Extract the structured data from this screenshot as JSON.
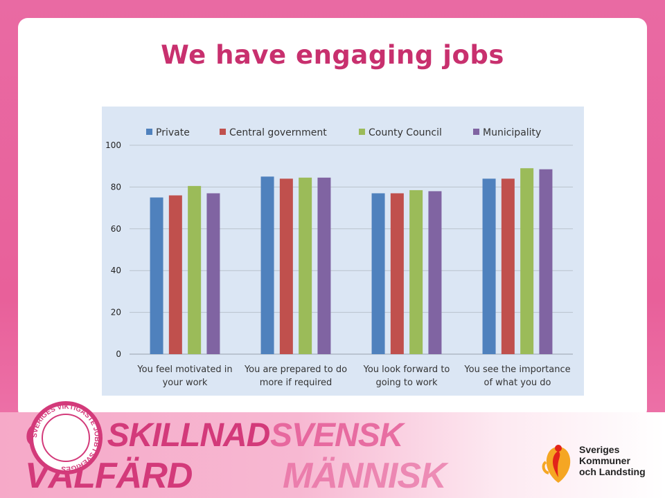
{
  "slide": {
    "title": "We have engaging jobs"
  },
  "footer": {
    "line1a": "GÖR SKILLNAD",
    "line1b": "SVENSK",
    "line2a": "VÄLFÄRD",
    "line2b": "MÄNNISK",
    "stamp_text": "SVERIGES VIKTIGASTE JOBB I SVERIGES",
    "logo_line1": "Sveriges",
    "logo_line2": "Kommuner",
    "logo_line3": "och Landsting"
  },
  "colors": {
    "title": "#c8306e",
    "private": "#4f81bd",
    "central_government": "#c0504d",
    "county_council": "#9bbb59",
    "municipality": "#8064a2"
  },
  "chart_data": {
    "type": "bar",
    "categories": [
      [
        "You feel motivated in",
        "your work"
      ],
      [
        "You are prepared to do",
        "more if required"
      ],
      [
        "You look forward to",
        "going to work"
      ],
      [
        "You see the importance",
        "of what you do"
      ]
    ],
    "series": [
      {
        "name": "Private",
        "color": "#4f81bd",
        "values": [
          75,
          85,
          77,
          84
        ]
      },
      {
        "name": "Central government",
        "color": "#c0504d",
        "values": [
          76,
          84,
          77,
          84
        ]
      },
      {
        "name": "County Council",
        "color": "#9bbb59",
        "values": [
          80.5,
          84.5,
          78.5,
          89
        ]
      },
      {
        "name": "Municipality",
        "color": "#8064a2",
        "values": [
          77,
          84.5,
          78,
          88.5
        ]
      }
    ],
    "ylim": [
      0,
      100
    ],
    "yticks": [
      0,
      20,
      40,
      60,
      80,
      100
    ],
    "grid": true,
    "legend_position": "top"
  }
}
